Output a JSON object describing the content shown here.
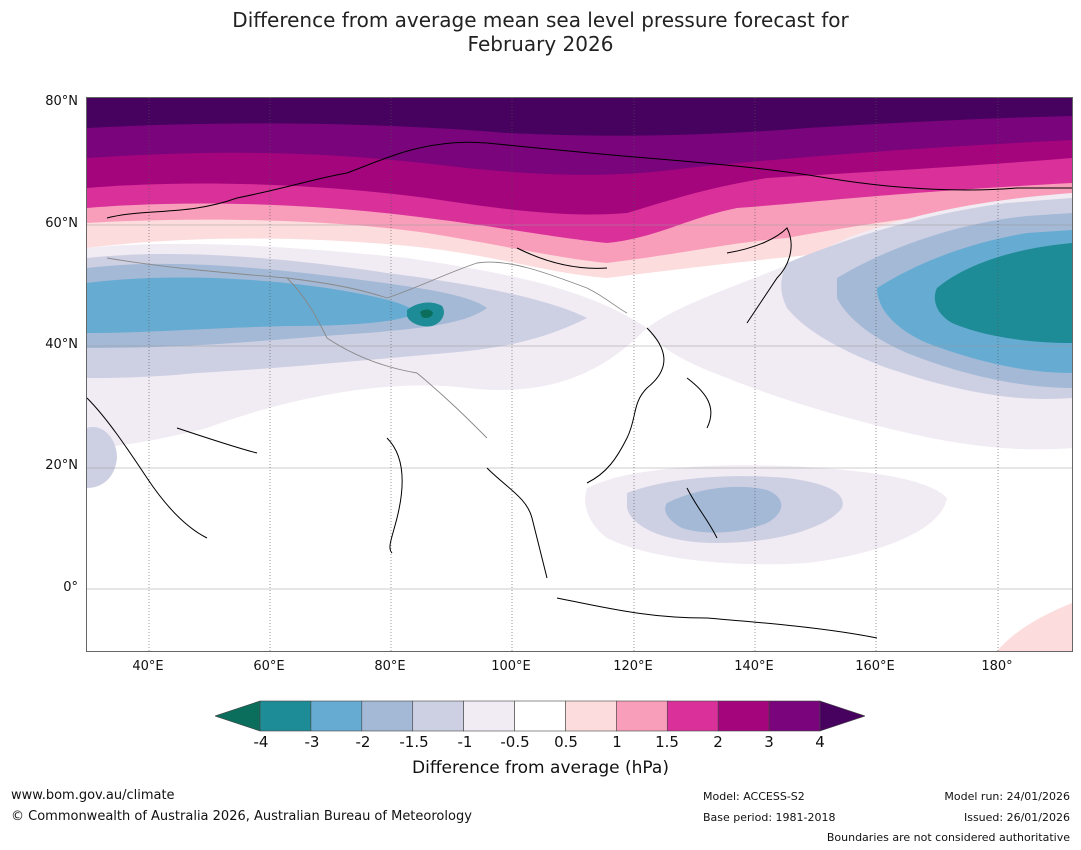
{
  "title_line1": "Difference from average mean sea level pressure forecast for",
  "title_line2": "February 2026",
  "lat_labels": [
    "80°N",
    "60°N",
    "40°N",
    "20°N",
    "0°"
  ],
  "lon_labels": [
    "40°E",
    "60°E",
    "80°E",
    "100°E",
    "120°E",
    "140°E",
    "160°E",
    "180°"
  ],
  "colorbar": {
    "ticks": [
      "-4",
      "-3",
      "-2",
      "-1.5",
      "-1",
      "-0.5",
      "0.5",
      "1",
      "1.5",
      "2",
      "3",
      "4"
    ],
    "colors": [
      "#0b6e5c",
      "#1e8c96",
      "#66abd2",
      "#a3b9d6",
      "#cdcfe3",
      "#f1ebf3",
      "#ffffff",
      "#fddcdd",
      "#f99eba",
      "#d9309a",
      "#a4047c",
      "#79047b",
      "#47025f"
    ],
    "label": "Difference from average (hPa)"
  },
  "footer": {
    "website": "www.bom.gov.au/climate",
    "copyright": "© Commonwealth of Australia 2026, Australian Bureau of Meteorology",
    "model": "Model: ACCESS-S2",
    "base_period": "Base period: 1981-2018",
    "model_run": "Model run: 24/01/2026",
    "issued": "Issued: 26/01/2026",
    "disclaimer": "Boundaries are not considered authoritative"
  }
}
